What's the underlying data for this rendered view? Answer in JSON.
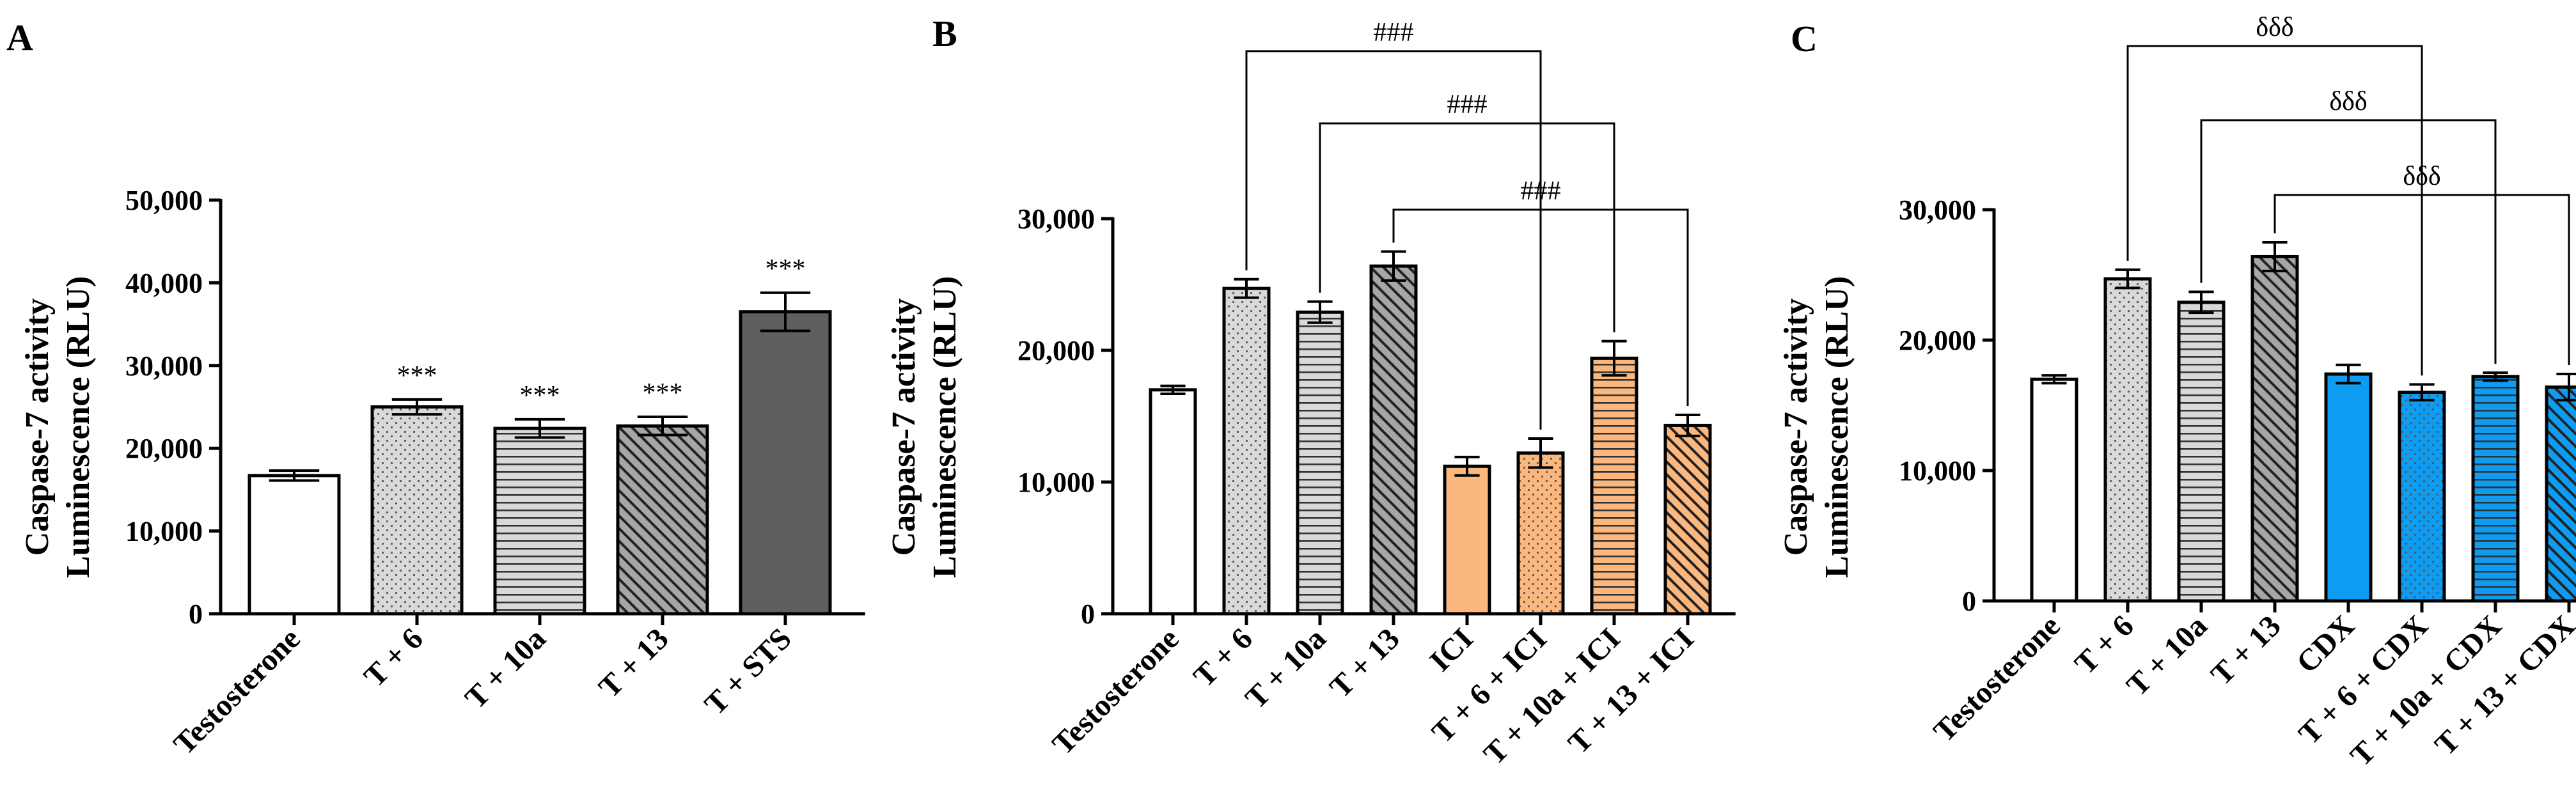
{
  "chart_data": [
    {
      "panel": "A",
      "type": "bar",
      "ylabel_line1": "Caspase-7 activity",
      "ylabel_line2": "Luminescence (RLU)",
      "ylim": [
        0,
        50000
      ],
      "yticks": [
        0,
        10000,
        20000,
        30000,
        40000,
        50000
      ],
      "ytick_labels": [
        "0",
        "10,000",
        "20,000",
        "30,000",
        "40,000",
        "50,000"
      ],
      "categories": [
        "Testosterone",
        "T + 6",
        "T + 10a",
        "T + 13",
        "T + STS"
      ],
      "values": [
        16700,
        25000,
        22400,
        22700,
        36500
      ],
      "errors": [
        600,
        900,
        1100,
        1100,
        2300
      ],
      "fills": [
        "white",
        "dots",
        "hlines",
        "diag",
        "solid"
      ],
      "colors": [
        "#ffffff",
        "#d9d9d9",
        "#d9d9d9",
        "#a6a6a6",
        "#5f5f5f"
      ],
      "bar_labels": [
        "",
        "***",
        "***",
        "***",
        "***"
      ],
      "brackets": []
    },
    {
      "panel": "B",
      "type": "bar",
      "ylabel_line1": "Caspase-7 activity",
      "ylabel_line2": "Luminescence (RLU)",
      "ylim": [
        0,
        30000
      ],
      "yticks": [
        0,
        10000,
        20000,
        30000
      ],
      "ytick_labels": [
        "0",
        "10,000",
        "20,000",
        "30,000"
      ],
      "categories": [
        "Testosterone",
        "T + 6",
        "T + 10a",
        "T + 13",
        "ICI",
        "T + 6 + ICI",
        "T + 10a + ICI",
        "T + 13 + ICI"
      ],
      "values": [
        17000,
        24700,
        22900,
        26400,
        11200,
        12200,
        19400,
        14300
      ],
      "errors": [
        300,
        700,
        800,
        1100,
        700,
        1100,
        1300,
        800
      ],
      "fills": [
        "white",
        "dots",
        "hlines",
        "diag",
        "solid",
        "dots",
        "hlines",
        "diag"
      ],
      "colors": [
        "#ffffff",
        "#d9d9d9",
        "#d9d9d9",
        "#a6a6a6",
        "#fbb77e",
        "#fbb77e",
        "#fbb77e",
        "#fbb77e"
      ],
      "bar_labels": [],
      "brackets": [
        {
          "from": 1,
          "to": 5,
          "label": "###"
        },
        {
          "from": 2,
          "to": 6,
          "label": "###"
        },
        {
          "from": 3,
          "to": 7,
          "label": "###"
        }
      ]
    },
    {
      "panel": "C",
      "type": "bar",
      "ylabel_line1": "Caspase-7 activity",
      "ylabel_line2": "Luminescence (RLU)",
      "ylim": [
        0,
        30000
      ],
      "yticks": [
        0,
        10000,
        20000,
        30000
      ],
      "ytick_labels": [
        "0",
        "10,000",
        "20,000",
        "30,000"
      ],
      "categories": [
        "Testosterone",
        "T + 6",
        "T + 10a",
        "T + 13",
        "CDX",
        "T + 6 + CDX",
        "T + 10a + CDX",
        "T + 13 + CDX"
      ],
      "values": [
        17000,
        24700,
        22900,
        26400,
        17400,
        16000,
        17200,
        16400
      ],
      "errors": [
        300,
        700,
        800,
        1100,
        700,
        600,
        300,
        1000
      ],
      "fills": [
        "white",
        "dots",
        "hlines",
        "diag",
        "solid",
        "dots",
        "hlines",
        "diag"
      ],
      "colors": [
        "#ffffff",
        "#d9d9d9",
        "#d9d9d9",
        "#a6a6a6",
        "#0e9bf2",
        "#0e9bf2",
        "#0e9bf2",
        "#0e9bf2"
      ],
      "bar_labels": [],
      "brackets": [
        {
          "from": 1,
          "to": 5,
          "label": "δδδ"
        },
        {
          "from": 2,
          "to": 6,
          "label": "δδδ"
        },
        {
          "from": 3,
          "to": 7,
          "label": "δδδ"
        }
      ]
    }
  ]
}
